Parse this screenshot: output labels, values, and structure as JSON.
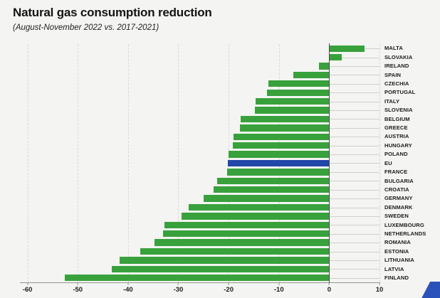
{
  "header": {
    "title": "Natural gas consumption reduction",
    "subtitle": "(August-November 2022 vs. 2017-2021)"
  },
  "colors": {
    "background": "#f4f4f2",
    "bar_green": "#38a13c",
    "eu_blue": "#2147a8",
    "gridline": "#d8d8d4",
    "leader_line": "#cfcfcc",
    "axis": "#96968f",
    "zero_line": "#4a4a46",
    "text": "#141414",
    "corner_logo_blue": "#2b52b8"
  },
  "chart_data": {
    "type": "bar",
    "orientation": "horizontal",
    "title": "Natural gas consumption reduction",
    "subtitle": "(August-November 2022 vs. 2017-2021)",
    "categories": [
      "MALTA",
      "SLOVAKIA",
      "IRELAND",
      "SPAIN",
      "CZECHIA",
      "PORTUGAL",
      "ITALY",
      "SLOVENIA",
      "BELGIUM",
      "GREECE",
      "AUSTRIA",
      "HUNGARY",
      "POLAND",
      "EU",
      "FRANCE",
      "BULGARIA",
      "CROATIA",
      "GERMANY",
      "DENMARK",
      "SWEDEN",
      "LUXEMBOURG",
      "NETHERLANDS",
      "ROMANIA",
      "ESTONIA",
      "LITHUANIA",
      "LATVIA",
      "FINLAND"
    ],
    "values": [
      7.0,
      2.5,
      -2.0,
      -7.2,
      -12.1,
      -12.4,
      -14.7,
      -14.8,
      -17.6,
      -17.7,
      -19.0,
      -19.2,
      -20.0,
      -20.1,
      -20.3,
      -22.3,
      -23.0,
      -25.0,
      -27.9,
      -29.3,
      -32.7,
      -33.0,
      -34.7,
      -37.6,
      -41.7,
      -43.3,
      -52.6
    ],
    "highlight_category": "EU",
    "xlim": [
      -61.5,
      10
    ],
    "x_ticks": [
      -60,
      -50,
      -40,
      -30,
      -20,
      -10,
      0,
      10
    ],
    "grid": "vertical-dashed",
    "legend": "none",
    "category_labels_position": "right"
  },
  "decor": {
    "corner_logo": "blue-parallelogram"
  }
}
